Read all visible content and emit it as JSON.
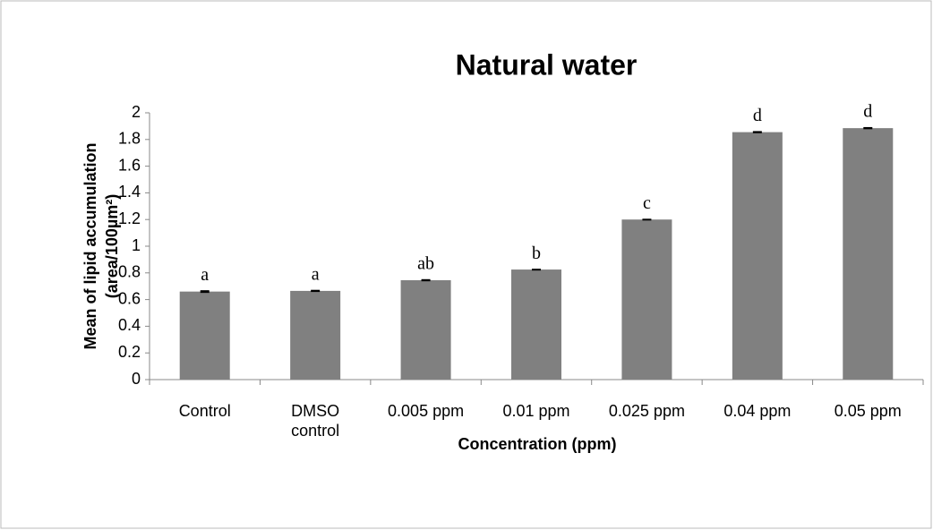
{
  "chart_data": {
    "type": "bar",
    "title": "Natural water",
    "x_label": "Concentration (ppm)",
    "y_label": [
      "Mean of lipid accumulation",
      "(area/100µm²)"
    ],
    "categories": [
      "Control",
      "DMSO control",
      "0.005 ppm",
      "0.01 ppm",
      "0.025 ppm",
      "0.04 ppm",
      "0.05 ppm"
    ],
    "values": [
      0.66,
      0.665,
      0.745,
      0.825,
      1.2,
      1.855,
      1.885
    ],
    "errors": [
      0.01,
      0.008,
      0.008,
      0.006,
      0.006,
      0.008,
      0.008
    ],
    "annotations": [
      "a",
      "a",
      "ab",
      "b",
      "c",
      "d",
      "d"
    ],
    "color": "#808080",
    "ylim": [
      0,
      2
    ],
    "yticks": [
      0,
      0.2,
      0.4,
      0.6,
      0.8,
      1,
      1.2,
      1.4,
      1.6,
      1.8,
      2
    ],
    "grid": false
  }
}
